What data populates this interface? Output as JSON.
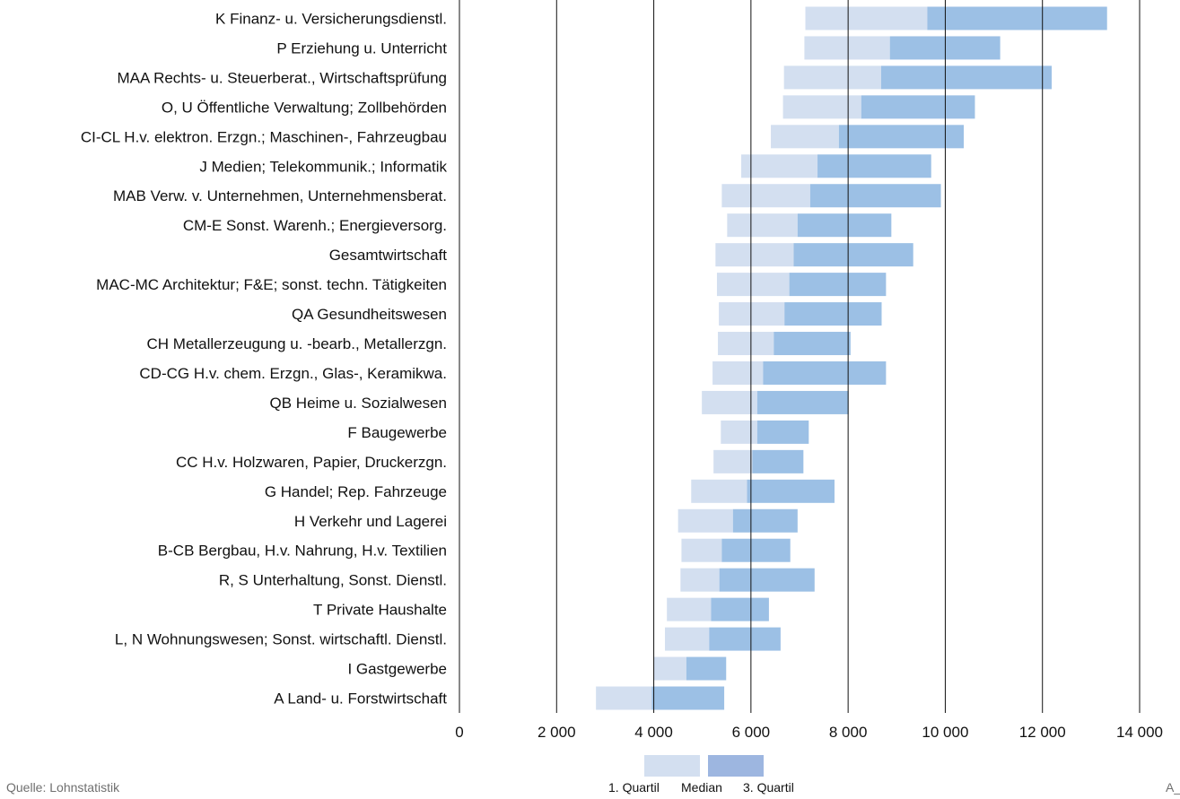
{
  "source": "Quelle: Lohnstatistik",
  "corner_text": "A_",
  "colors": {
    "q1_median": "#d3dff0",
    "median_q3": "#9cc0e5",
    "legend_q3": "#9db6e0",
    "gridline": "#111111",
    "text": "#111111",
    "source": "#6f6f6f"
  },
  "legend": {
    "q1_label": "1. Quartil",
    "median_label": "Median",
    "q3_label": "3. Quartil"
  },
  "chart_data": {
    "type": "bar",
    "orientation": "horizontal",
    "subtype": "floating-range (1. Quartil – Median – 3. Quartil)",
    "xlim": [
      0,
      14000
    ],
    "x_ticks": [
      0,
      2000,
      4000,
      6000,
      8000,
      10000,
      12000,
      14000
    ],
    "x_tick_labels": [
      "0",
      "2 000",
      "4 000",
      "6 000",
      "8 000",
      "10 000",
      "12 000",
      "14 000"
    ],
    "grid": "vertical",
    "legend_position": "bottom",
    "categories": [
      "K Finanz- u. Versicherungsdienstl.",
      "P Erziehung u. Unterricht",
      "MAA Rechts- u. Steuerberat., Wirtschaftsprüfung",
      "O, U Öffentliche Verwaltung; Zollbehörden",
      "CI-CL H.v. elektron. Erzgn.; Maschinen-, Fahrzeugbau",
      "J Medien; Telekommunik.; Informatik",
      "MAB Verw. v. Unternehmen, Unternehmensberat.",
      "CM-E Sonst. Warenh.; Energieversorg.",
      "Gesamtwirtschaft",
      "MAC-MC Architektur; F&E; sonst. techn. Tätigkeiten",
      "QA Gesundheitswesen",
      "CH Metallerzeugung u. -bearb., Metallerzgn.",
      "CD-CG H.v. chem. Erzgn., Glas-, Keramikwa.",
      "QB Heime u. Sozialwesen",
      "F Baugewerbe",
      "CC H.v. Holzwaren, Papier, Druckerzgn.",
      "G Handel; Rep. Fahrzeuge",
      "H Verkehr und Lagerei",
      "B-CB Bergbau, H.v. Nahrung, H.v. Textilien",
      "R, S Unterhaltung, Sonst. Dienstl.",
      "T Private Haushalte",
      "L, N Wohnungswesen; Sonst. wirtschaftl. Dienstl.",
      "I Gastgewerbe",
      "A Land- u. Forstwirtschaft"
    ],
    "series": [
      {
        "name": "1. Quartil",
        "values": [
          7120,
          7100,
          6680,
          6660,
          6410,
          5800,
          5400,
          5510,
          5270,
          5300,
          5340,
          5320,
          5210,
          4990,
          5380,
          5230,
          4770,
          4500,
          4570,
          4550,
          4270,
          4230,
          4000,
          2810
        ]
      },
      {
        "name": "Median",
        "values": [
          9630,
          8860,
          8680,
          8270,
          7810,
          7370,
          7220,
          6960,
          6880,
          6790,
          6690,
          6470,
          6250,
          6130,
          6130,
          6030,
          5920,
          5630,
          5400,
          5350,
          5180,
          5140,
          4670,
          3960
        ]
      },
      {
        "name": "3. Quartil",
        "values": [
          13330,
          11130,
          12190,
          10610,
          10380,
          9710,
          9910,
          8890,
          9340,
          8780,
          8690,
          8050,
          8780,
          8010,
          7190,
          7080,
          7720,
          6960,
          6810,
          7310,
          6370,
          6610,
          5490,
          5450
        ]
      }
    ]
  }
}
